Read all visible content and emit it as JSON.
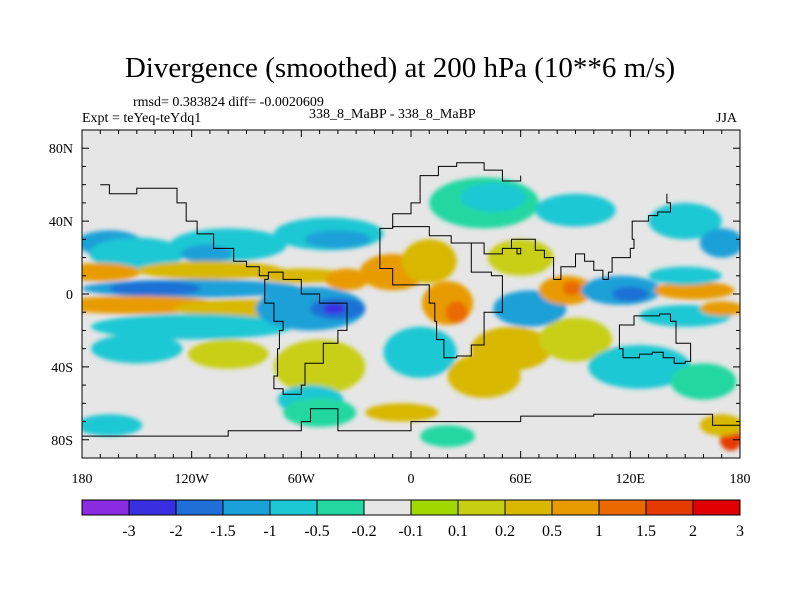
{
  "chart_data": {
    "type": "heatmap",
    "title": "Divergence (smoothed) at 200 hPa (10**6 m/s)",
    "rmsd_label": "rmsd= 0.383824  diff= -0.0020609",
    "expt_label": "Expt = teYeq-teYdq1",
    "center_label": "338_8_MaBP - 338_8_MaBP",
    "season_label": "JJA",
    "x_axis": {
      "range": [
        -180,
        180
      ],
      "ticks": [
        {
          "value": -180,
          "label": "180"
        },
        {
          "value": -120,
          "label": "120W"
        },
        {
          "value": -60,
          "label": "60W"
        },
        {
          "value": 0,
          "label": "0"
        },
        {
          "value": 60,
          "label": "60E"
        },
        {
          "value": 120,
          "label": "120E"
        },
        {
          "value": 180,
          "label": "180"
        }
      ]
    },
    "y_axis": {
      "range": [
        -90,
        90
      ],
      "ticks": [
        {
          "value": 80,
          "label": "80N"
        },
        {
          "value": 40,
          "label": "40N"
        },
        {
          "value": 0,
          "label": "0"
        },
        {
          "value": -40,
          "label": "40S"
        },
        {
          "value": -80,
          "label": "80S"
        }
      ]
    },
    "colorbar": {
      "labels": [
        "-3",
        "-2",
        "-1.5",
        "-1",
        "-0.5",
        "-0.2",
        "-0.1",
        "0.1",
        "0.2",
        "0.5",
        "1",
        "1.5",
        "2",
        "3"
      ],
      "colors": [
        "#8a2be2",
        "#3a2fe0",
        "#1f6fd6",
        "#1aa0d8",
        "#1cc8d4",
        "#22d8a0",
        "#e6e6e6",
        "#a0d800",
        "#c8cf12",
        "#d8b800",
        "#e89b00",
        "#ea6a00",
        "#e53a00",
        "#e00000"
      ]
    },
    "blobs": [
      {
        "lon": -165,
        "lat": 28,
        "rx": 18,
        "ry": 7,
        "class": 3
      },
      {
        "lon": -150,
        "lat": 22,
        "rx": 26,
        "ry": 9,
        "class": 4
      },
      {
        "lon": -100,
        "lat": 27,
        "rx": 32,
        "ry": 9,
        "class": 4
      },
      {
        "lon": -112,
        "lat": 22,
        "rx": 14,
        "ry": 5,
        "class": 3
      },
      {
        "lon": -45,
        "lat": 33,
        "rx": 30,
        "ry": 9,
        "class": 4
      },
      {
        "lon": -40,
        "lat": 30,
        "rx": 18,
        "ry": 5,
        "class": 3
      },
      {
        "lon": 40,
        "lat": 50,
        "rx": 30,
        "ry": 14,
        "class": 5
      },
      {
        "lon": 45,
        "lat": 53,
        "rx": 18,
        "ry": 8,
        "class": 4
      },
      {
        "lon": 90,
        "lat": 46,
        "rx": 22,
        "ry": 9,
        "class": 4
      },
      {
        "lon": 150,
        "lat": 40,
        "rx": 20,
        "ry": 10,
        "class": 4
      },
      {
        "lon": 170,
        "lat": 28,
        "rx": 12,
        "ry": 8,
        "class": 3
      },
      {
        "lon": -170,
        "lat": 12,
        "rx": 22,
        "ry": 5,
        "class": 10
      },
      {
        "lon": -110,
        "lat": 13,
        "rx": 40,
        "ry": 5,
        "class": 9
      },
      {
        "lon": -60,
        "lat": 10,
        "rx": 25,
        "ry": 4,
        "class": 9
      },
      {
        "lon": -120,
        "lat": 3,
        "rx": 60,
        "ry": 5,
        "class": 3
      },
      {
        "lon": -140,
        "lat": 3,
        "rx": 25,
        "ry": 4,
        "class": 2
      },
      {
        "lon": -150,
        "lat": -6,
        "rx": 45,
        "ry": 5,
        "class": 10
      },
      {
        "lon": -90,
        "lat": -8,
        "rx": 40,
        "ry": 5,
        "class": 9
      },
      {
        "lon": -120,
        "lat": -18,
        "rx": 55,
        "ry": 7,
        "class": 4
      },
      {
        "lon": -55,
        "lat": -8,
        "rx": 30,
        "ry": 12,
        "class": 3
      },
      {
        "lon": -40,
        "lat": -8,
        "rx": 15,
        "ry": 6,
        "class": 2
      },
      {
        "lon": -42,
        "lat": -8,
        "rx": 6,
        "ry": 3,
        "class": 1
      },
      {
        "lon": -35,
        "lat": 8,
        "rx": 12,
        "ry": 6,
        "class": 10
      },
      {
        "lon": -10,
        "lat": 12,
        "rx": 18,
        "ry": 10,
        "class": 10
      },
      {
        "lon": 10,
        "lat": 18,
        "rx": 15,
        "ry": 12,
        "class": 9
      },
      {
        "lon": 20,
        "lat": -5,
        "rx": 14,
        "ry": 12,
        "class": 10
      },
      {
        "lon": 25,
        "lat": -10,
        "rx": 6,
        "ry": 6,
        "class": 11
      },
      {
        "lon": 60,
        "lat": 20,
        "rx": 18,
        "ry": 10,
        "class": 8
      },
      {
        "lon": 65,
        "lat": -8,
        "rx": 20,
        "ry": 10,
        "class": 3
      },
      {
        "lon": 55,
        "lat": -30,
        "rx": 22,
        "ry": 12,
        "class": 9
      },
      {
        "lon": 85,
        "lat": 2,
        "rx": 15,
        "ry": 8,
        "class": 10
      },
      {
        "lon": 88,
        "lat": 3,
        "rx": 5,
        "ry": 4,
        "class": 11
      },
      {
        "lon": 115,
        "lat": 2,
        "rx": 22,
        "ry": 8,
        "class": 3
      },
      {
        "lon": 120,
        "lat": 0,
        "rx": 10,
        "ry": 4,
        "class": 2
      },
      {
        "lon": 155,
        "lat": 2,
        "rx": 22,
        "ry": 5,
        "class": 10
      },
      {
        "lon": 150,
        "lat": 10,
        "rx": 20,
        "ry": 5,
        "class": 4
      },
      {
        "lon": 150,
        "lat": -12,
        "rx": 25,
        "ry": 6,
        "class": 4
      },
      {
        "lon": 170,
        "lat": -8,
        "rx": 12,
        "ry": 4,
        "class": 10
      },
      {
        "lon": -150,
        "lat": -30,
        "rx": 25,
        "ry": 8,
        "class": 4
      },
      {
        "lon": -100,
        "lat": -33,
        "rx": 22,
        "ry": 8,
        "class": 8
      },
      {
        "lon": -50,
        "lat": -40,
        "rx": 25,
        "ry": 15,
        "class": 8
      },
      {
        "lon": -55,
        "lat": -58,
        "rx": 18,
        "ry": 8,
        "class": 4
      },
      {
        "lon": 5,
        "lat": -32,
        "rx": 20,
        "ry": 14,
        "class": 4
      },
      {
        "lon": 40,
        "lat": -45,
        "rx": 20,
        "ry": 12,
        "class": 9
      },
      {
        "lon": 90,
        "lat": -25,
        "rx": 20,
        "ry": 12,
        "class": 8
      },
      {
        "lon": 125,
        "lat": -40,
        "rx": 28,
        "ry": 12,
        "class": 4
      },
      {
        "lon": 160,
        "lat": -48,
        "rx": 18,
        "ry": 10,
        "class": 5
      },
      {
        "lon": -165,
        "lat": -72,
        "rx": 18,
        "ry": 6,
        "class": 4
      },
      {
        "lon": -50,
        "lat": -65,
        "rx": 20,
        "ry": 8,
        "class": 5
      },
      {
        "lon": -5,
        "lat": -65,
        "rx": 20,
        "ry": 5,
        "class": 9
      },
      {
        "lon": 20,
        "lat": -78,
        "rx": 15,
        "ry": 6,
        "class": 5
      },
      {
        "lon": 175,
        "lat": -80,
        "rx": 6,
        "ry": 6,
        "class": 12
      },
      {
        "lon": 170,
        "lat": -72,
        "rx": 12,
        "ry": 6,
        "class": 9
      }
    ],
    "coastlines": [
      [
        [
          -170,
          60
        ],
        [
          -165,
          55
        ],
        [
          -150,
          58
        ],
        [
          -135,
          58
        ],
        [
          -128,
          50
        ],
        [
          -123,
          40
        ],
        [
          -117,
          33
        ],
        [
          -108,
          25
        ],
        [
          -97,
          18
        ],
        [
          -90,
          15
        ],
        [
          -83,
          10
        ],
        [
          -78,
          8
        ]
      ],
      [
        [
          -78,
          8
        ],
        [
          -80,
          0
        ],
        [
          -80,
          -5
        ],
        [
          -75,
          -15
        ],
        [
          -70,
          -20
        ],
        [
          -72,
          -30
        ],
        [
          -73,
          -45
        ],
        [
          -75,
          -52
        ],
        [
          -70,
          -55
        ],
        [
          -65,
          -55
        ],
        [
          -60,
          -50
        ],
        [
          -58,
          -38
        ],
        [
          -48,
          -27
        ],
        [
          -40,
          -20
        ],
        [
          -35,
          -8
        ],
        [
          -35,
          -5
        ],
        [
          -50,
          0
        ],
        [
          -60,
          8
        ],
        [
          -70,
          12
        ],
        [
          -78,
          8
        ]
      ],
      [
        [
          -10,
          36
        ],
        [
          -17,
          20
        ],
        [
          -17,
          14
        ],
        [
          -10,
          5
        ],
        [
          5,
          5
        ],
        [
          10,
          3
        ],
        [
          10,
          -5
        ],
        [
          13,
          -15
        ],
        [
          14,
          -25
        ],
        [
          18,
          -35
        ],
        [
          25,
          -34
        ],
        [
          33,
          -28
        ],
        [
          40,
          -16
        ],
        [
          40,
          -10
        ],
        [
          50,
          10
        ],
        [
          44,
          12
        ],
        [
          43,
          12
        ],
        [
          33,
          28
        ],
        [
          22,
          32
        ],
        [
          10,
          37
        ],
        [
          -10,
          36
        ]
      ],
      [
        [
          5,
          55
        ],
        [
          5,
          65
        ],
        [
          15,
          70
        ],
        [
          25,
          72
        ],
        [
          40,
          68
        ],
        [
          50,
          62
        ],
        [
          60,
          65
        ]
      ],
      [
        [
          -10,
          36
        ],
        [
          -10,
          44
        ],
        [
          0,
          50
        ],
        [
          5,
          55
        ]
      ],
      [
        [
          33,
          28
        ],
        [
          40,
          22
        ],
        [
          50,
          25
        ],
        [
          58,
          22
        ],
        [
          60,
          25
        ],
        [
          55,
          30
        ],
        [
          68,
          24
        ],
        [
          73,
          20
        ],
        [
          78,
          8
        ],
        [
          82,
          15
        ],
        [
          90,
          22
        ],
        [
          95,
          18
        ],
        [
          100,
          13
        ],
        [
          105,
          8
        ],
        [
          108,
          12
        ],
        [
          110,
          20
        ],
        [
          120,
          25
        ],
        [
          122,
          30
        ],
        [
          121,
          40
        ],
        [
          130,
          43
        ],
        [
          135,
          45
        ],
        [
          142,
          50
        ],
        [
          140,
          55
        ]
      ],
      [
        [
          114,
          -22
        ],
        [
          114,
          -30
        ],
        [
          116,
          -35
        ],
        [
          125,
          -33
        ],
        [
          132,
          -32
        ],
        [
          138,
          -35
        ],
        [
          144,
          -38
        ],
        [
          150,
          -37
        ],
        [
          153,
          -27
        ],
        [
          145,
          -15
        ],
        [
          142,
          -11
        ],
        [
          136,
          -12
        ],
        [
          130,
          -12
        ],
        [
          122,
          -17
        ],
        [
          114,
          -22
        ]
      ],
      [
        [
          -180,
          -78
        ],
        [
          -150,
          -78
        ],
        [
          -100,
          -75
        ],
        [
          -60,
          -70
        ],
        [
          -55,
          -63
        ],
        [
          -40,
          -75
        ],
        [
          0,
          -70
        ],
        [
          60,
          -67
        ],
        [
          100,
          -66
        ],
        [
          140,
          -66
        ],
        [
          165,
          -72
        ],
        [
          180,
          -78
        ]
      ]
    ]
  }
}
